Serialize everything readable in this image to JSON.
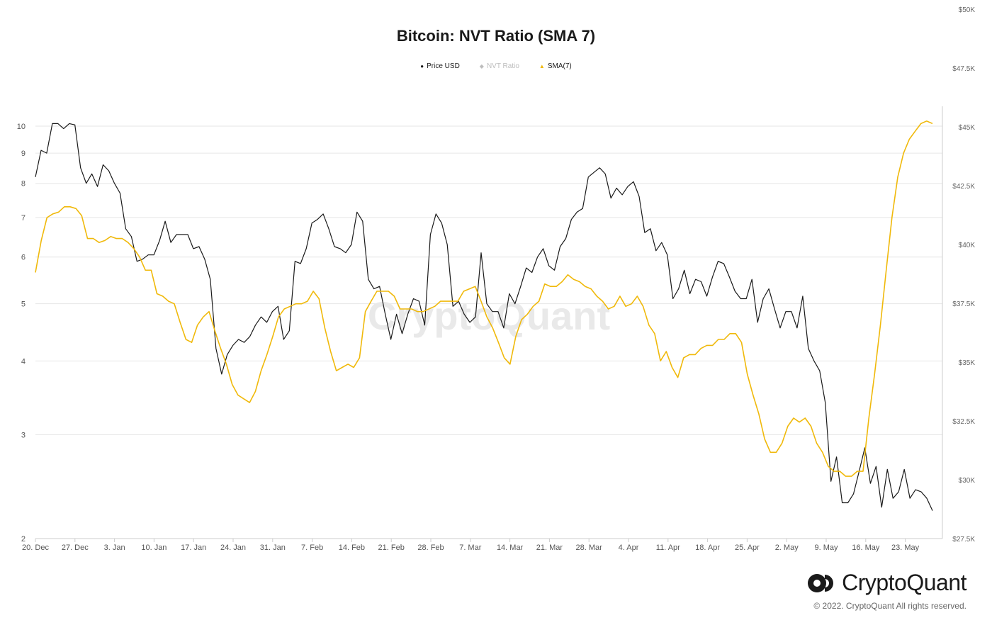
{
  "chart_data": {
    "type": "line",
    "title": "Bitcoin: NVT Ratio (SMA 7)",
    "watermark": "CryptoQuant",
    "x_ticks": [
      "20. Dec",
      "27. Dec",
      "3. Jan",
      "10. Jan",
      "17. Jan",
      "24. Jan",
      "31. Jan",
      "7. Feb",
      "14. Feb",
      "21. Feb",
      "28. Feb",
      "7. Mar",
      "14. Mar",
      "21. Mar",
      "28. Mar",
      "4. Apr",
      "11. Apr",
      "18. Apr",
      "25. Apr",
      "2. May",
      "9. May",
      "16. May",
      "23. May"
    ],
    "left_axis": {
      "scale": "log",
      "ticks": [
        "2",
        "3",
        "4",
        "5",
        "6",
        "7",
        "8",
        "9",
        "10"
      ],
      "range": [
        2,
        10.5
      ]
    },
    "right_axis": {
      "scale": "linear",
      "ticks": [
        "$27.5K",
        "$30K",
        "$32.5K",
        "$35K",
        "$37.5K",
        "$40K",
        "$42.5K",
        "$45K",
        "$47.5K",
        "$50K"
      ],
      "range": [
        27500,
        51000
      ]
    },
    "legend_position": "top-center",
    "grid": "horizontal",
    "series": [
      {
        "name": "Price USD",
        "axis": "left",
        "color": "#1a1a1a",
        "values": [
          8.2,
          9.1,
          9.0,
          10.1,
          10.1,
          9.9,
          10.1,
          10.05,
          8.5,
          8.0,
          8.3,
          7.9,
          8.6,
          8.4,
          8.0,
          7.7,
          6.7,
          6.5,
          5.9,
          5.95,
          6.05,
          6.05,
          6.4,
          6.9,
          6.35,
          6.55,
          6.55,
          6.55,
          6.2,
          6.25,
          5.95,
          5.5,
          4.2,
          3.8,
          4.1,
          4.25,
          4.35,
          4.3,
          4.4,
          4.6,
          4.75,
          4.65,
          4.85,
          4.95,
          4.35,
          4.5,
          5.9,
          5.85,
          6.2,
          6.85,
          6.95,
          7.1,
          6.7,
          6.25,
          6.2,
          6.1,
          6.3,
          7.15,
          6.9,
          5.5,
          5.3,
          5.35,
          4.8,
          4.35,
          4.8,
          4.45,
          4.8,
          5.1,
          5.05,
          4.6,
          6.55,
          7.1,
          6.85,
          6.3,
          4.95,
          5.05,
          4.8,
          4.65,
          4.75,
          6.1,
          5.0,
          4.85,
          4.85,
          4.55,
          5.2,
          5.0,
          5.35,
          5.75,
          5.65,
          6.0,
          6.2,
          5.8,
          5.7,
          6.25,
          6.45,
          6.95,
          7.15,
          7.25,
          8.2,
          8.35,
          8.5,
          8.3,
          7.55,
          7.85,
          7.65,
          7.9,
          8.05,
          7.6,
          6.6,
          6.7,
          6.15,
          6.35,
          6.05,
          5.1,
          5.3,
          5.7,
          5.2,
          5.5,
          5.45,
          5.15,
          5.55,
          5.9,
          5.85,
          5.55,
          5.25,
          5.1,
          5.1,
          5.5,
          4.65,
          5.1,
          5.3,
          4.9,
          4.55,
          4.85,
          4.85,
          4.55,
          5.15,
          4.2,
          4.0,
          3.85,
          3.4,
          2.5,
          2.75,
          2.3,
          2.3,
          2.38,
          2.6,
          2.85,
          2.48,
          2.65,
          2.26,
          2.62,
          2.34,
          2.4,
          2.62,
          2.34,
          2.42,
          2.4,
          2.34,
          2.23
        ]
      },
      {
        "name": "NVT Ratio",
        "axis": "left",
        "color": "#bdbdbd",
        "visible": false,
        "values": []
      },
      {
        "name": "SMA(7)",
        "axis": "left",
        "color": "#f0b90b",
        "values": [
          5.65,
          6.4,
          7.0,
          7.1,
          7.15,
          7.3,
          7.3,
          7.25,
          7.05,
          6.45,
          6.45,
          6.35,
          6.4,
          6.5,
          6.45,
          6.45,
          6.35,
          6.2,
          6.0,
          5.7,
          5.7,
          5.2,
          5.15,
          5.05,
          5.0,
          4.65,
          4.35,
          4.3,
          4.6,
          4.75,
          4.85,
          4.5,
          4.2,
          3.95,
          3.65,
          3.5,
          3.45,
          3.4,
          3.55,
          3.85,
          4.1,
          4.4,
          4.75,
          4.9,
          4.95,
          5.0,
          5.0,
          5.05,
          5.25,
          5.1,
          4.55,
          4.15,
          3.85,
          3.9,
          3.95,
          3.9,
          4.05,
          4.85,
          5.05,
          5.25,
          5.25,
          5.25,
          5.15,
          4.9,
          4.9,
          4.9,
          4.85,
          4.85,
          4.9,
          4.95,
          5.05,
          5.05,
          5.05,
          5.05,
          5.25,
          5.3,
          5.35,
          5.05,
          4.75,
          4.55,
          4.3,
          4.05,
          3.95,
          4.4,
          4.7,
          4.8,
          4.95,
          5.05,
          5.4,
          5.35,
          5.35,
          5.45,
          5.6,
          5.5,
          5.45,
          5.35,
          5.3,
          5.15,
          5.05,
          4.9,
          4.95,
          5.15,
          4.95,
          5.0,
          5.15,
          4.95,
          4.6,
          4.45,
          4.0,
          4.15,
          3.9,
          3.75,
          4.05,
          4.1,
          4.1,
          4.2,
          4.25,
          4.25,
          4.35,
          4.35,
          4.45,
          4.45,
          4.3,
          3.8,
          3.5,
          3.25,
          2.95,
          2.8,
          2.8,
          2.9,
          3.1,
          3.2,
          3.15,
          3.2,
          3.1,
          2.9,
          2.8,
          2.65,
          2.6,
          2.6,
          2.55,
          2.55,
          2.6,
          2.6,
          3.2,
          3.8,
          4.6,
          5.7,
          7.0,
          8.2,
          9.0,
          9.5,
          9.8,
          10.1,
          10.2,
          10.1
        ]
      }
    ]
  },
  "brand": {
    "name": "CryptoQuant",
    "copyright": "© 2022. CryptoQuant All rights reserved."
  },
  "colors": {
    "price": "#1a1a1a",
    "nvt": "#bdbdbd",
    "sma": "#f0b90b",
    "grid": "#e6e6e6",
    "axis": "#cccccc"
  }
}
